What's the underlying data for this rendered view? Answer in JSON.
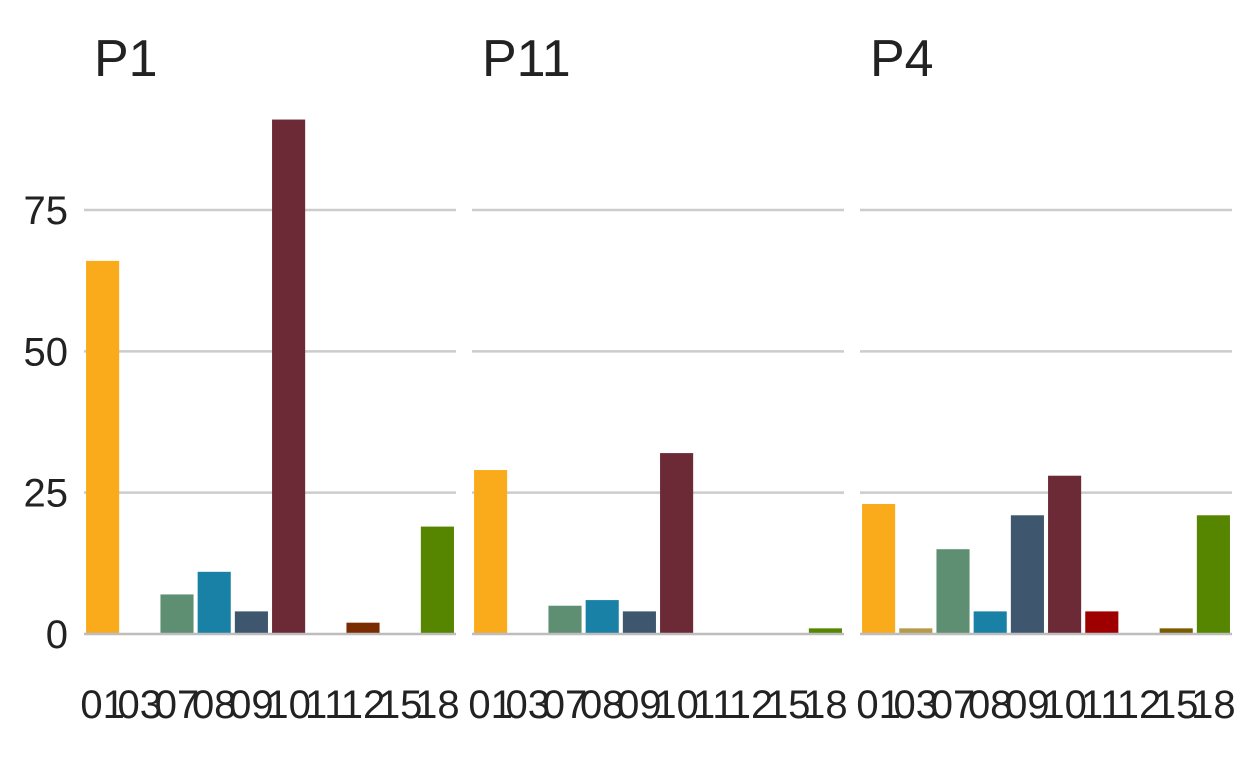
{
  "chart_data": {
    "type": "bar",
    "categories": [
      "01",
      "03",
      "07",
      "08",
      "09",
      "10",
      "11",
      "12",
      "15",
      "18"
    ],
    "colors": [
      "#F9AB1B",
      "#B59A4A",
      "#5F8F73",
      "#1A81A6",
      "#3E566E",
      "#6C2A36",
      "#9E0000",
      "#7A2B00",
      "#7A5B00",
      "#568500"
    ],
    "ylim": [
      0,
      95
    ],
    "yticks": [
      0,
      25,
      50,
      75
    ],
    "ytick_labels": [
      "0",
      "25",
      "50",
      "75"
    ],
    "grid": true,
    "panels": [
      {
        "title": "P1",
        "values": [
          66,
          0,
          7,
          11,
          4,
          91,
          0,
          2,
          0,
          19
        ]
      },
      {
        "title": "P11",
        "values": [
          29,
          0,
          5,
          6,
          4,
          32,
          0,
          0,
          0,
          1
        ]
      },
      {
        "title": "P4",
        "values": [
          23,
          1,
          15,
          4,
          21,
          28,
          4,
          0,
          1,
          21
        ]
      }
    ]
  }
}
